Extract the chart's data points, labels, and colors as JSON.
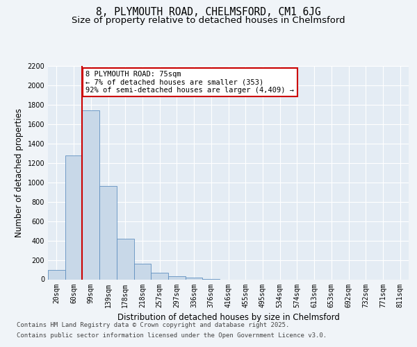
{
  "title_line1": "8, PLYMOUTH ROAD, CHELMSFORD, CM1 6JG",
  "title_line2": "Size of property relative to detached houses in Chelmsford",
  "xlabel": "Distribution of detached houses by size in Chelmsford",
  "ylabel": "Number of detached properties",
  "categories": [
    "20sqm",
    "60sqm",
    "99sqm",
    "139sqm",
    "178sqm",
    "218sqm",
    "257sqm",
    "297sqm",
    "336sqm",
    "376sqm",
    "416sqm",
    "455sqm",
    "495sqm",
    "534sqm",
    "574sqm",
    "613sqm",
    "653sqm",
    "692sqm",
    "732sqm",
    "771sqm",
    "811sqm"
  ],
  "values": [
    100,
    1280,
    1740,
    960,
    415,
    160,
    65,
    35,
    15,
    5,
    0,
    0,
    0,
    0,
    0,
    0,
    0,
    0,
    0,
    0,
    0
  ],
  "bar_color": "#c8d8e8",
  "bar_edge_color": "#6090c0",
  "red_line_x": 1.5,
  "property_label": "8 PLYMOUTH ROAD: 75sqm",
  "annotation_line1": "← 7% of detached houses are smaller (353)",
  "annotation_line2": "92% of semi-detached houses are larger (4,409) →",
  "annotation_box_color": "#ffffff",
  "annotation_box_edge_color": "#cc0000",
  "red_line_color": "#cc0000",
  "ylim": [
    0,
    2200
  ],
  "yticks": [
    0,
    200,
    400,
    600,
    800,
    1000,
    1200,
    1400,
    1600,
    1800,
    2000,
    2200
  ],
  "footer_line1": "Contains HM Land Registry data © Crown copyright and database right 2025.",
  "footer_line2": "Contains public sector information licensed under the Open Government Licence v3.0.",
  "bg_color": "#f0f4f8",
  "plot_bg_color": "#e4ecf4",
  "grid_color": "#ffffff",
  "title_fontsize": 10.5,
  "subtitle_fontsize": 9.5,
  "axis_label_fontsize": 8.5,
  "tick_fontsize": 7,
  "footer_fontsize": 6.5,
  "annotation_fontsize": 7.5
}
